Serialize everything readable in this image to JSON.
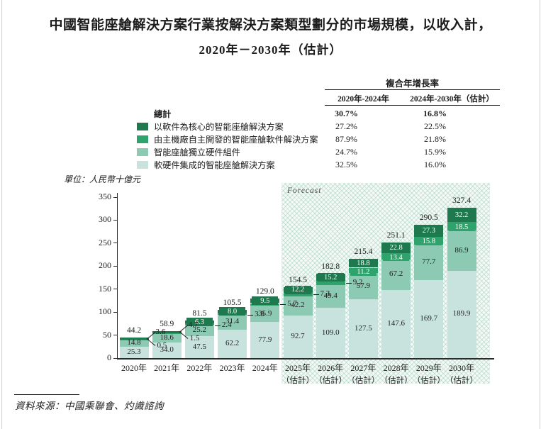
{
  "page": {
    "title_line1": "中國智能座艙解決方案行業按解決方案類型劃分的市場規模，以收入計，",
    "title_line2": "2020年－2030年（估計）",
    "unit_label": "單位：人民幣十億元",
    "source_label": "資料來源：中國乘聯會、灼識諮詢"
  },
  "cagr_table": {
    "header": "複合年增長率",
    "col_headers": [
      "2020年-2024年",
      "2024年-2030年（估計）"
    ],
    "rows": [
      {
        "label": "總計",
        "bold": true,
        "swatch": null,
        "values": [
          "30.7%",
          "16.8%"
        ]
      },
      {
        "label": "以軟件為核心的智能座艙解決方案",
        "bold": false,
        "swatch": "#1e7a4e",
        "values": [
          "27.2%",
          "22.5%"
        ]
      },
      {
        "label": "由主機廠自主開發的智能座艙軟件解決方案",
        "bold": false,
        "swatch": "#2fa36c",
        "values": [
          "87.9%",
          "21.8%"
        ]
      },
      {
        "label": "智能座艙獨立硬件組件",
        "bold": false,
        "swatch": "#8ccab4",
        "values": [
          "24.7%",
          "15.9%"
        ]
      },
      {
        "label": "軟硬件集成的智能座艙解決方案",
        "bold": false,
        "swatch": "#c8e3de",
        "values": [
          "32.5%",
          "16.0%"
        ]
      }
    ]
  },
  "chart_data": {
    "type": "bar",
    "stacked": true,
    "title": "中國智能座艙解決方案行業按解決方案類型劃分的市場規模，以收入計，2020年－2030年（估計）",
    "ylabel": "單位：人民幣十億元",
    "ylim": [
      0,
      350
    ],
    "yticks": [
      0,
      50,
      100,
      150,
      200,
      250,
      300,
      350
    ],
    "grid": false,
    "legend_position": "top-left",
    "categories": [
      "2020年",
      "2021年",
      "2022年",
      "2023年",
      "2024年",
      "2025年",
      "2026年",
      "2027年",
      "2028年",
      "2029年",
      "2030年"
    ],
    "category_notes": [
      "",
      "",
      "",
      "",
      "",
      "（估計）",
      "（估計）",
      "（估計）",
      "（估計）",
      "（估計）",
      "（估計）"
    ],
    "forecast_label": "Forecast",
    "forecast_start_index": 5,
    "series": [
      {
        "name": "以軟件為核心的智能座艙解決方案",
        "color": "#1e7a4e",
        "values": [
          3.6,
          4.7,
          6.3,
          8.0,
          9.5,
          12.2,
          15.2,
          18.8,
          22.8,
          27.3,
          32.2
        ]
      },
      {
        "name": "由主機廠自主開發的智能座艙軟件解決方案",
        "color": "#2fa36c",
        "values": [
          0.5,
          1.5,
          2.4,
          3.8,
          5.7,
          7.3,
          9.2,
          11.2,
          13.4,
          15.8,
          18.5
        ]
      },
      {
        "name": "智能座艙獨立硬件組件",
        "color": "#8ccab4",
        "values": [
          14.8,
          18.6,
          25.2,
          31.4,
          35.9,
          42.2,
          49.4,
          57.9,
          67.2,
          77.7,
          86.9
        ]
      },
      {
        "name": "軟硬件集成的智能座艙解決方案",
        "color": "#c8e3de",
        "values": [
          25.3,
          34.0,
          47.5,
          62.2,
          77.9,
          92.7,
          109.0,
          127.5,
          147.6,
          169.7,
          189.9
        ]
      }
    ],
    "totals": [
      44.2,
      58.9,
      81.5,
      105.5,
      129.0,
      154.5,
      182.8,
      215.4,
      251.1,
      290.5,
      327.4
    ]
  }
}
